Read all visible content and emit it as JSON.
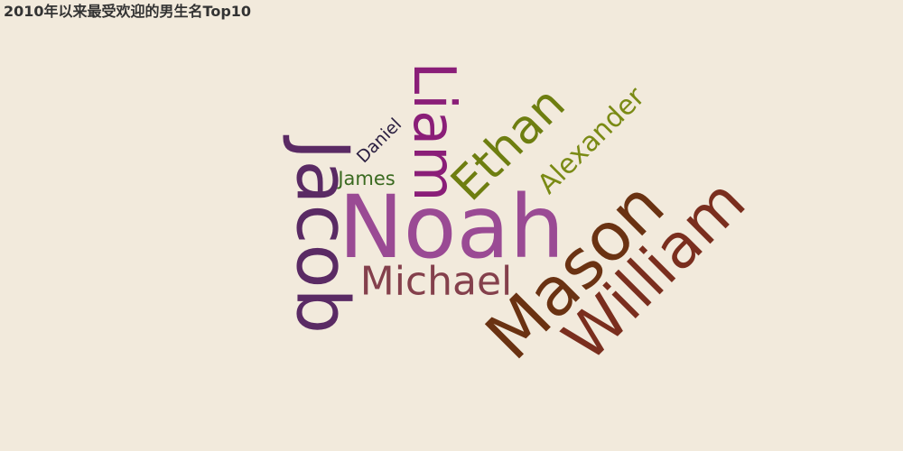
{
  "chart_data": {
    "type": "wordcloud",
    "title": "2010年以来最受欢迎的男生名Top10",
    "words": [
      {
        "name": "Noah",
        "color": "#9a4a94"
      },
      {
        "name": "Jacob",
        "color": "#5a2a64"
      },
      {
        "name": "Mason",
        "color": "#6a3212"
      },
      {
        "name": "William",
        "color": "#7a2e1e"
      },
      {
        "name": "Liam",
        "color": "#8a1e78"
      },
      {
        "name": "Ethan",
        "color": "#6e7e10"
      },
      {
        "name": "Michael",
        "color": "#84404c"
      },
      {
        "name": "Alexander",
        "color": "#7a8a14"
      },
      {
        "name": "James",
        "color": "#3a6a20"
      },
      {
        "name": "Daniel",
        "color": "#2a1e40"
      }
    ]
  }
}
